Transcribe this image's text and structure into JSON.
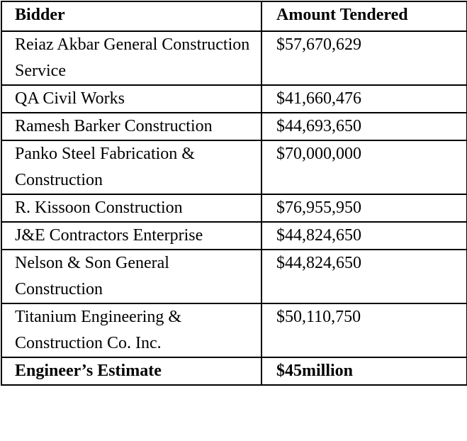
{
  "table": {
    "headers": [
      "Bidder",
      "Amount Tendered"
    ],
    "rows": [
      {
        "bidder": "Reiaz Akbar General Construction Service",
        "amount": "$57,670,629"
      },
      {
        "bidder": "QA Civil Works",
        "amount": "$41,660,476"
      },
      {
        "bidder": "Ramesh Barker Construction",
        "amount": "$44,693,650"
      },
      {
        "bidder": "Panko Steel Fabrication & Construction",
        "amount": "$70,000,000"
      },
      {
        "bidder": "R. Kissoon Construction",
        "amount": "$76,955,950"
      },
      {
        "bidder": "J&E Contractors Enterprise",
        "amount": "$44,824,650"
      },
      {
        "bidder": "Nelson & Son General Construction",
        "amount": "$44,824,650"
      },
      {
        "bidder": "Titanium Engineering & Construction Co. Inc.",
        "amount": "$50,110,750"
      }
    ],
    "total": {
      "label": "Engineer’s Estimate",
      "amount": "$45million"
    }
  }
}
